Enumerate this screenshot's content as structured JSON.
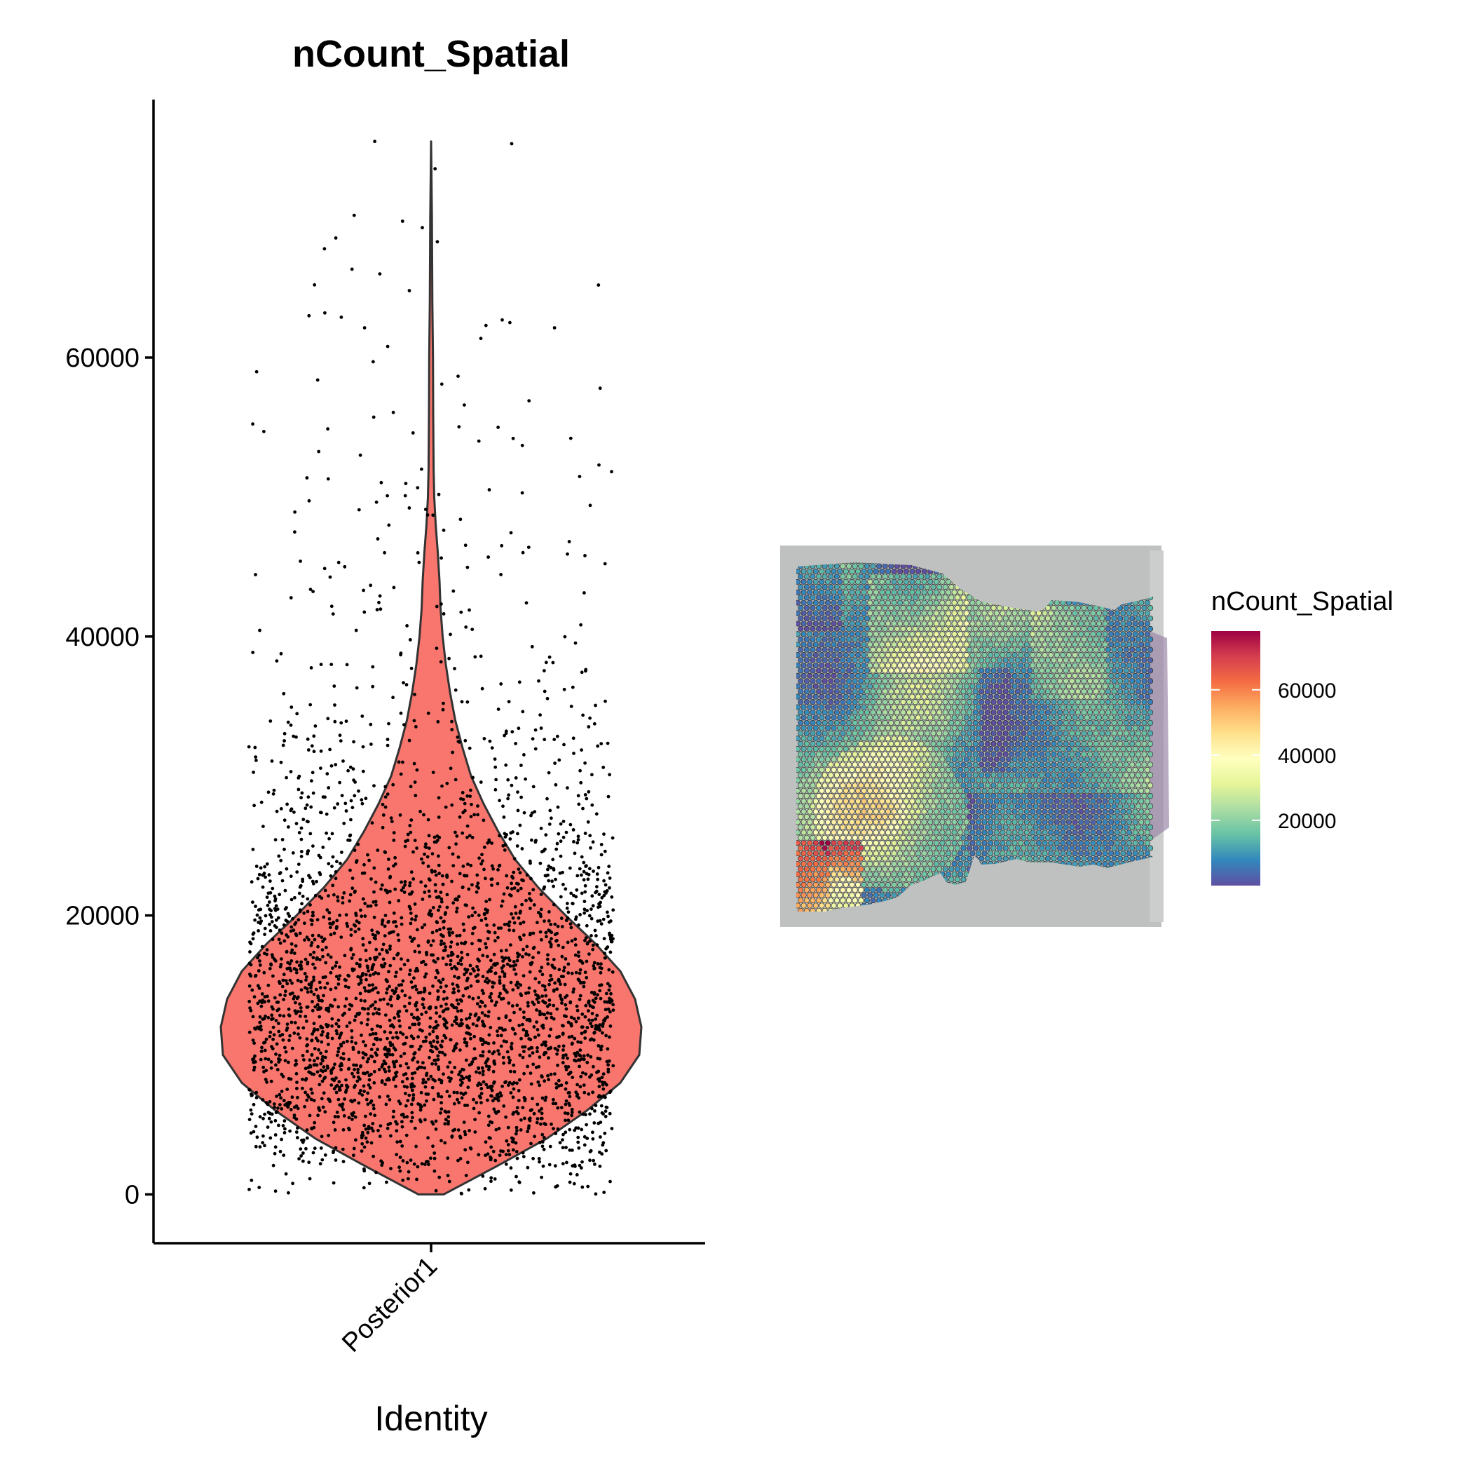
{
  "chart_data": [
    {
      "type": "violin",
      "title": "nCount_Spatial",
      "xlabel": "Identity",
      "ylabel": "",
      "categories": [
        "Posterior1"
      ],
      "ylim": [
        -3500,
        78500
      ],
      "yticks": [
        0,
        20000,
        40000,
        60000
      ],
      "fill_color": "#F8766D",
      "point_color": "#000000",
      "point_count": 3355,
      "summary": {
        "min": 0,
        "mode": 12000,
        "max": 75500
      },
      "density_profile": [
        [
          0,
          0.06
        ],
        [
          2000,
          0.31
        ],
        [
          4000,
          0.55
        ],
        [
          6000,
          0.74
        ],
        [
          8000,
          0.9
        ],
        [
          10000,
          0.99
        ],
        [
          12000,
          1.0
        ],
        [
          14000,
          0.97
        ],
        [
          16000,
          0.9
        ],
        [
          18000,
          0.78
        ],
        [
          20000,
          0.64
        ],
        [
          22000,
          0.51
        ],
        [
          24000,
          0.4
        ],
        [
          26000,
          0.32
        ],
        [
          28000,
          0.25
        ],
        [
          30000,
          0.19
        ],
        [
          32000,
          0.15
        ],
        [
          34000,
          0.115
        ],
        [
          36000,
          0.09
        ],
        [
          38000,
          0.07
        ],
        [
          40000,
          0.055
        ],
        [
          42000,
          0.045
        ],
        [
          44000,
          0.04
        ],
        [
          46000,
          0.032
        ],
        [
          48000,
          0.022
        ],
        [
          50000,
          0.015
        ],
        [
          52000,
          0.012
        ],
        [
          56000,
          0.01
        ],
        [
          60000,
          0.009
        ],
        [
          64000,
          0.006
        ],
        [
          70000,
          0.004
        ],
        [
          75500,
          0.0
        ]
      ],
      "outlier_points": [
        75500,
        70200,
        67800,
        66000,
        65200,
        64800,
        63200,
        63000,
        62700,
        62300,
        59700,
        58100,
        57800,
        56900,
        56600,
        55000,
        54700,
        54600,
        54200,
        53700,
        53000,
        52000,
        51300,
        50300,
        49400,
        48700,
        48400,
        47000,
        46400,
        46000,
        45800,
        45400,
        45000
      ]
    },
    {
      "type": "heatmap",
      "title": "",
      "description_type": "spatial",
      "legend": {
        "title": "nCount_Spatial",
        "ticks": [
          20000,
          40000,
          60000
        ],
        "range": [
          0,
          78000
        ],
        "colors": [
          "#5E4FA2",
          "#3288BD",
          "#66C2A5",
          "#ABDDA4",
          "#E6F598",
          "#FFFFBF",
          "#FEE08B",
          "#FDAE61",
          "#F46D43",
          "#D53E4F",
          "#9E0142"
        ]
      },
      "background_color": "#BFC1C0"
    }
  ]
}
